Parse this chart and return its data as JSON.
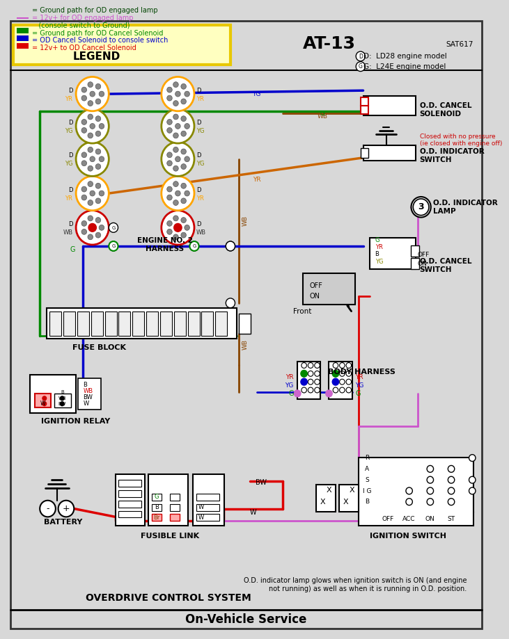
{
  "title": "On-Vehicle Service",
  "subtitle": "OVERDRIVE CONTROL SYSTEM",
  "page_label": "AT-13",
  "sat_label": "SAT617",
  "bg_color": "#d8d8d8",
  "note_text": "O.D. indicator lamp glows when ignition switch is ON (and engine\nnot running) as well as when it is running in O.D. position.",
  "legend_box_color": "#e8c800",
  "legend_entries": [
    {
      "color": "#dd0000",
      "text": "= 12v+ to OD Cancel Solenoid"
    },
    {
      "color": "#0000cc",
      "text": "= OD Cancel Solenoid to console switch"
    },
    {
      "color": "#008800",
      "text": "= Ground path for OD Cancel Solenoid"
    },
    {
      "color": "#008800",
      "text": "   (console switch to Ground)"
    },
    {
      "color": "#cc55cc",
      "text": "= 12v+ for OD engaged lamp"
    },
    {
      "color": "#004400",
      "text": "= Ground path for OD engaged lamp"
    }
  ]
}
